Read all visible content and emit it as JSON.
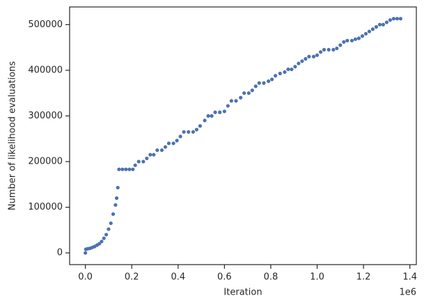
{
  "chart_data": {
    "type": "scatter",
    "xlabel": "Iteration",
    "ylabel": "Number of likelihood evaluations",
    "x_offset_label": "1e6",
    "color": "#4c72b0",
    "x": [
      0,
      2000,
      10000,
      20000,
      30000,
      40000,
      50000,
      60000,
      70000,
      80000,
      90000,
      100000,
      110000,
      120000,
      130000,
      135000,
      140000,
      145000,
      160000,
      175000,
      190000,
      205000,
      215000,
      230000,
      250000,
      265000,
      280000,
      295000,
      310000,
      330000,
      345000,
      360000,
      380000,
      395000,
      410000,
      425000,
      445000,
      465000,
      480000,
      495000,
      515000,
      530000,
      545000,
      560000,
      580000,
      600000,
      615000,
      630000,
      650000,
      670000,
      685000,
      705000,
      720000,
      735000,
      750000,
      770000,
      790000,
      805000,
      820000,
      840000,
      860000,
      875000,
      890000,
      905000,
      920000,
      935000,
      950000,
      965000,
      985000,
      1000000,
      1015000,
      1030000,
      1050000,
      1070000,
      1085000,
      1100000,
      1115000,
      1130000,
      1150000,
      1165000,
      1180000,
      1195000,
      1210000,
      1225000,
      1240000,
      1255000,
      1270000,
      1285000,
      1300000,
      1315000,
      1330000,
      1345000,
      1360000
    ],
    "values": [
      0,
      8000,
      9000,
      10000,
      12000,
      14000,
      17000,
      20000,
      25000,
      32000,
      40000,
      52000,
      65000,
      85000,
      105000,
      120000,
      143000,
      183000,
      183000,
      183000,
      183000,
      183000,
      192000,
      200000,
      200000,
      207000,
      215000,
      215000,
      225000,
      225000,
      232000,
      240000,
      240000,
      246000,
      255000,
      265000,
      265000,
      265000,
      270000,
      278000,
      290000,
      300000,
      300000,
      308000,
      308000,
      310000,
      322000,
      333000,
      333000,
      340000,
      350000,
      350000,
      356000,
      365000,
      372000,
      372000,
      376000,
      380000,
      388000,
      393000,
      396000,
      402000,
      402000,
      408000,
      415000,
      420000,
      425000,
      430000,
      430000,
      433000,
      440000,
      445000,
      445000,
      445000,
      448000,
      455000,
      462000,
      465000,
      465000,
      468000,
      470000,
      475000,
      480000,
      485000,
      490000,
      495000,
      500000,
      500000,
      505000,
      510000,
      513000,
      513000,
      513000
    ],
    "xlim": [
      -68000,
      1428000
    ],
    "ylim": [
      -25650,
      538650
    ],
    "xticks": [
      {
        "value": 0,
        "label": "0.0"
      },
      {
        "value": 200000,
        "label": "0.2"
      },
      {
        "value": 400000,
        "label": "0.4"
      },
      {
        "value": 600000,
        "label": "0.6"
      },
      {
        "value": 800000,
        "label": "0.8"
      },
      {
        "value": 1000000,
        "label": "1.0"
      },
      {
        "value": 1200000,
        "label": "1.2"
      },
      {
        "value": 1400000,
        "label": "1.4"
      }
    ],
    "yticks": [
      0,
      100000,
      200000,
      300000,
      400000,
      500000
    ]
  }
}
